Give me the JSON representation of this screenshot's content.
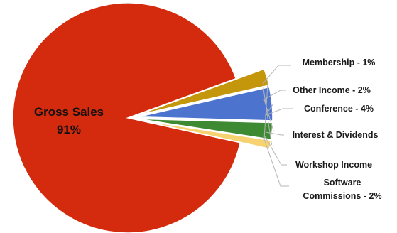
{
  "chart_data": {
    "type": "pie",
    "title": "",
    "slices": [
      {
        "label": "Gross Sales",
        "display": "Gross Sales",
        "percent_text": "91%",
        "value": 91,
        "color": "#d42a0e"
      },
      {
        "label": "Membership",
        "display": "Membership - 1%",
        "value": 1,
        "color": "#f6d370"
      },
      {
        "label": "Other Income",
        "display": "Other Income - 2%",
        "value": 2,
        "color": "#3e8a33"
      },
      {
        "label": "Conference",
        "display": "Conference - 4%",
        "value": 4,
        "color": "#4c74cf"
      },
      {
        "label": "Interest & Dividends",
        "display": "Interest & Dividends",
        "value": 0,
        "color": "#9a9a9a"
      },
      {
        "label": "Workshop Income",
        "display": "Workshop Income",
        "value": 0,
        "color": "#9a9a9a"
      },
      {
        "label": "Software Commissions",
        "display": "Software Commissions - 2%",
        "display_lines": [
          "Software",
          "Commissions - 2%"
        ],
        "value": 2,
        "color": "#c4960b"
      }
    ],
    "legend": "callout labels"
  }
}
